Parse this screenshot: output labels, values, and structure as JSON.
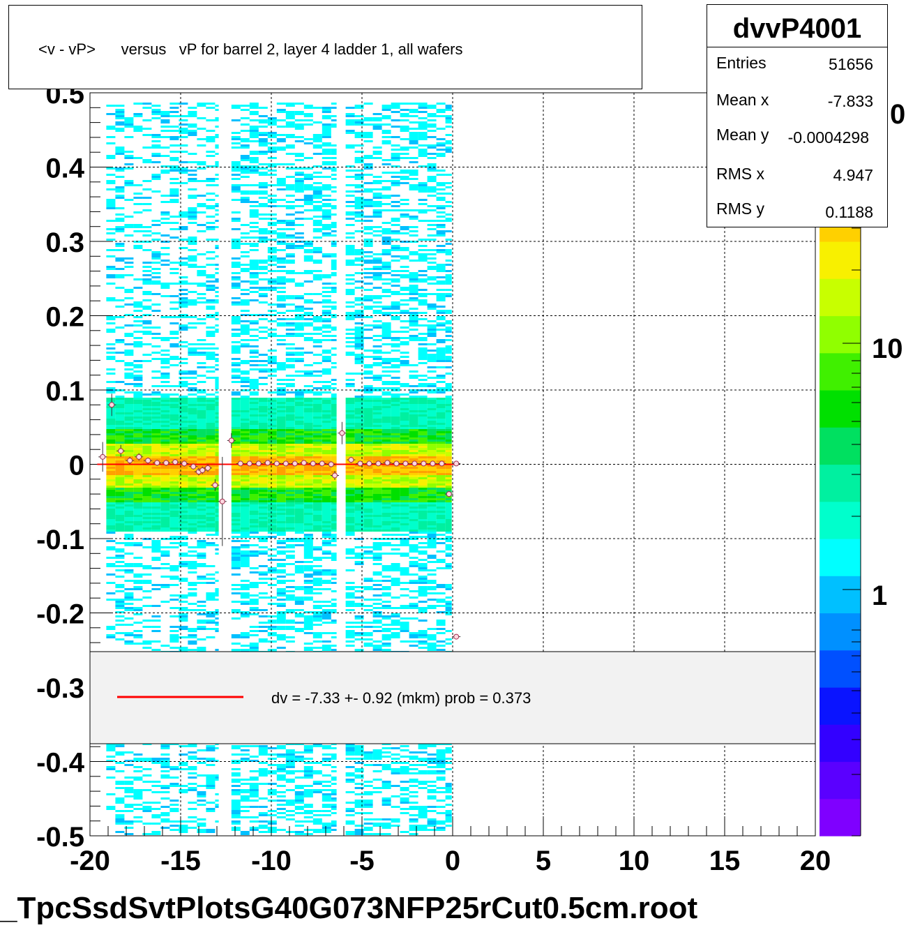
{
  "title": "<v - vP>      versus   vP for barrel 2, layer 4 ladder 1, all wafers",
  "footer": "_TpcSsdSvtPlotsG40G073NFP25rCut0.5cm.root",
  "stats": {
    "name": "dvvP4001",
    "entries_label": "Entries",
    "entries": "51656",
    "meanx_label": "Mean x",
    "meanx": "-7.833",
    "meany_label": "Mean y",
    "meany": "-0.0004298",
    "rmsx_label": "RMS x",
    "rmsx": "4.947",
    "rmsy_label": "RMS y",
    "rmsy": "0.1188"
  },
  "legend": {
    "text": "dv =   -7.33 +-  0.92 (mkm) prob = 0.373",
    "line_color": "#ff0000"
  },
  "chart_data": {
    "type": "heatmap",
    "xlim": [
      -20,
      20
    ],
    "ylim": [
      -0.5,
      0.5
    ],
    "x_ticks": [
      "-20",
      "-15",
      "-10",
      "-5",
      "0",
      "5",
      "10",
      "15",
      "20"
    ],
    "y_ticks": [
      "-0.5",
      "-0.4",
      "-0.3",
      "-0.2",
      "-0.1",
      "0",
      "0.1",
      "0.2",
      "0.3",
      "0.4",
      "0.5"
    ],
    "grid": true,
    "colorbar": {
      "scale": "log",
      "labels": [
        "1",
        "10",
        "0"
      ]
    },
    "palette": [
      "#7f00ff",
      "#5a00ff",
      "#3300ff",
      "#0a14ff",
      "#0050ff",
      "#0090ff",
      "#00c0ff",
      "#00ffff",
      "#00ffcc",
      "#00f0a0",
      "#00e060",
      "#00e000",
      "#40f000",
      "#90ff00",
      "#c8ff00",
      "#f8f000",
      "#ffd000",
      "#ffa000"
    ],
    "occupancy": [
      {
        "x0": -19.1,
        "x1": -12.9,
        "density": 0.6
      },
      {
        "x0": -12.2,
        "x1": -6.4,
        "density": 0.8
      },
      {
        "x0": -5.9,
        "x1": -0.05,
        "density": 0.8
      }
    ],
    "core_y": 0.0,
    "fit_line": {
      "y": 0.0,
      "x0": -19.6,
      "x1": 0.3
    },
    "profile_points": [
      {
        "x": -19.3,
        "y": 0.01,
        "err": 0.02
      },
      {
        "x": -18.8,
        "y": 0.08,
        "err": 0.015
      },
      {
        "x": -18.3,
        "y": 0.018,
        "err": 0.008
      },
      {
        "x": -17.8,
        "y": 0.005,
        "err": 0.005
      },
      {
        "x": -17.3,
        "y": 0.01,
        "err": 0.005
      },
      {
        "x": -16.8,
        "y": 0.005,
        "err": 0.004
      },
      {
        "x": -16.3,
        "y": 0.002,
        "err": 0.004
      },
      {
        "x": -15.8,
        "y": 0.002,
        "err": 0.004
      },
      {
        "x": -15.3,
        "y": 0.003,
        "err": 0.004
      },
      {
        "x": -14.8,
        "y": 0.001,
        "err": 0.004
      },
      {
        "x": -14.3,
        "y": -0.003,
        "err": 0.004
      },
      {
        "x": -14.0,
        "y": -0.01,
        "err": 0.005
      },
      {
        "x": -13.8,
        "y": -0.008,
        "err": 0.005
      },
      {
        "x": -13.5,
        "y": -0.005,
        "err": 0.005
      },
      {
        "x": -13.1,
        "y": -0.028,
        "err": 0.008
      },
      {
        "x": -12.7,
        "y": -0.05,
        "err": 0.06
      },
      {
        "x": -12.2,
        "y": 0.032,
        "err": 0.01
      },
      {
        "x": -11.7,
        "y": 0.001,
        "err": 0.003
      },
      {
        "x": -11.2,
        "y": 0.001,
        "err": 0.003
      },
      {
        "x": -10.7,
        "y": 0.001,
        "err": 0.003
      },
      {
        "x": -10.2,
        "y": 0.002,
        "err": 0.003
      },
      {
        "x": -9.7,
        "y": 0.001,
        "err": 0.003
      },
      {
        "x": -9.2,
        "y": 0.001,
        "err": 0.003
      },
      {
        "x": -8.7,
        "y": 0.001,
        "err": 0.003
      },
      {
        "x": -8.2,
        "y": 0.002,
        "err": 0.003
      },
      {
        "x": -7.7,
        "y": 0.001,
        "err": 0.003
      },
      {
        "x": -7.2,
        "y": 0.001,
        "err": 0.003
      },
      {
        "x": -6.7,
        "y": 0.0,
        "err": 0.004
      },
      {
        "x": -6.5,
        "y": -0.015,
        "err": 0.006
      },
      {
        "x": -6.1,
        "y": 0.042,
        "err": 0.015
      },
      {
        "x": -5.6,
        "y": 0.006,
        "err": 0.004
      },
      {
        "x": -5.1,
        "y": 0.001,
        "err": 0.003
      },
      {
        "x": -4.6,
        "y": 0.001,
        "err": 0.003
      },
      {
        "x": -4.1,
        "y": 0.001,
        "err": 0.003
      },
      {
        "x": -3.6,
        "y": 0.002,
        "err": 0.003
      },
      {
        "x": -3.1,
        "y": 0.001,
        "err": 0.003
      },
      {
        "x": -2.6,
        "y": 0.001,
        "err": 0.003
      },
      {
        "x": -2.1,
        "y": 0.001,
        "err": 0.003
      },
      {
        "x": -1.6,
        "y": 0.001,
        "err": 0.003
      },
      {
        "x": -1.1,
        "y": 0.001,
        "err": 0.003
      },
      {
        "x": -0.6,
        "y": 0.001,
        "err": 0.003
      },
      {
        "x": -0.2,
        "y": -0.04,
        "err": 0.004
      },
      {
        "x": 0.2,
        "y": 0.001,
        "err": 0.003
      },
      {
        "x": 0.2,
        "y": -0.232,
        "err": 0.002
      }
    ]
  }
}
